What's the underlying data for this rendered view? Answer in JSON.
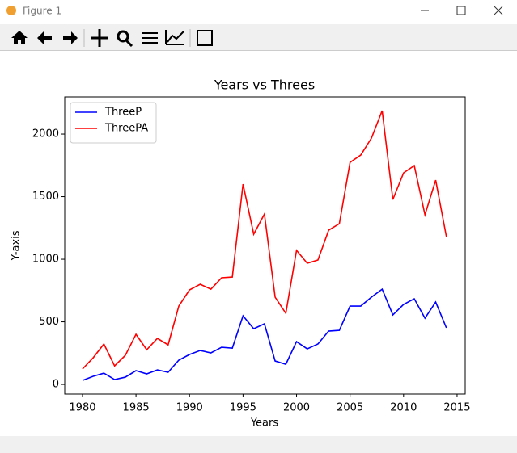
{
  "window": {
    "title": "Figure 1"
  },
  "chart_data": {
    "type": "line",
    "title": "Years vs Threes",
    "xlabel": "Years",
    "ylabel": "Y-axis",
    "x": [
      1980,
      1981,
      1982,
      1983,
      1984,
      1985,
      1986,
      1987,
      1988,
      1989,
      1990,
      1991,
      1992,
      1993,
      1994,
      1995,
      1996,
      1997,
      1998,
      1999,
      2000,
      2001,
      2002,
      2003,
      2004,
      2005,
      2006,
      2007,
      2008,
      2009,
      2010,
      2011,
      2012,
      2013,
      2014
    ],
    "series": [
      {
        "name": "ThreeP",
        "color": "#0000ff",
        "values": [
          32,
          65,
          90,
          39,
          58,
          110,
          84,
          116,
          97,
          194,
          239,
          271,
          252,
          297,
          290,
          548,
          445,
          484,
          187,
          161,
          342,
          284,
          323,
          426,
          432,
          626,
          626,
          697,
          761,
          555,
          639,
          684,
          529,
          658,
          452
        ]
      },
      {
        "name": "ThreePA",
        "color": "#ff0000",
        "values": [
          123,
          213,
          323,
          148,
          232,
          400,
          277,
          368,
          316,
          626,
          755,
          800,
          761,
          852,
          858,
          1600,
          1200,
          1361,
          697,
          568,
          1071,
          968,
          994,
          1232,
          1284,
          1774,
          1832,
          1968,
          2187,
          1477,
          1690,
          1748,
          1355,
          1632,
          1181
        ]
      }
    ],
    "xlim": [
      1978.34,
      2015.76
    ],
    "xticks": [
      1980,
      1985,
      1990,
      1995,
      2000,
      2005,
      2010,
      2015
    ],
    "ylim": [
      -77,
      2297
    ],
    "yticks": [
      0,
      500,
      1000,
      1500,
      2000
    ],
    "legend": "upper left"
  }
}
